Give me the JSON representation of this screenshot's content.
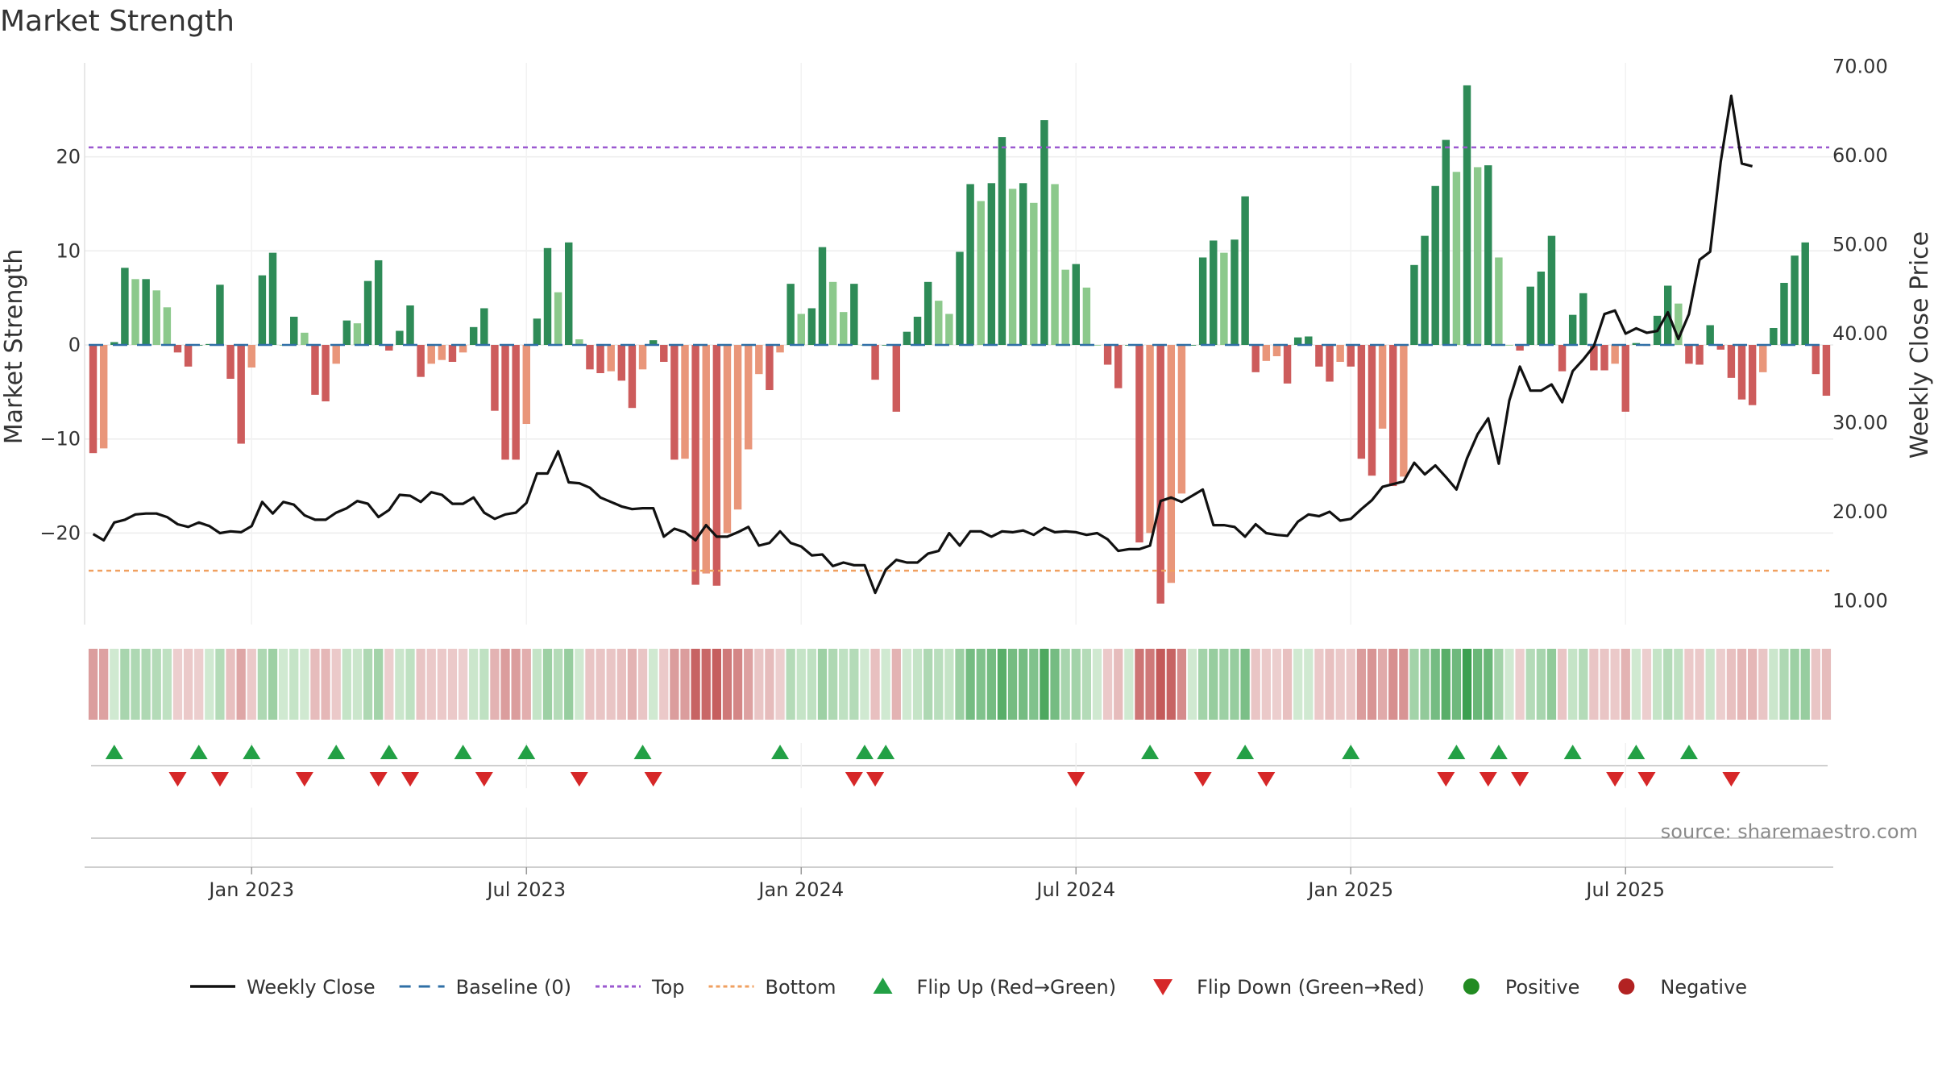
{
  "chart_data": {
    "type": "bar",
    "title": "Market Strength",
    "ylabel_left": "Market Strength",
    "ylabel_right": "Weekly Close Price",
    "source": "source: sharemaestro.com",
    "ylim_left": [
      -30,
      30
    ],
    "left_ticks": [
      {
        "v": 20,
        "label": "20"
      },
      {
        "v": 10,
        "label": "10"
      },
      {
        "v": 0,
        "label": "0"
      },
      {
        "v": -10,
        "label": "−10"
      },
      {
        "v": -20,
        "label": "−20"
      }
    ],
    "ylim_right": [
      5,
      72
    ],
    "right_ticks": [
      {
        "v": 70,
        "label": "70.00"
      },
      {
        "v": 60,
        "label": "60.00"
      },
      {
        "v": 50,
        "label": "50.00"
      },
      {
        "v": 40,
        "label": "40.00"
      },
      {
        "v": 30,
        "label": "30.00"
      },
      {
        "v": 20,
        "label": "20.00"
      },
      {
        "v": 10,
        "label": "10.00"
      }
    ],
    "x_ticks": [
      {
        "label": "Jan 2023",
        "week": 15
      },
      {
        "label": "Jul 2023",
        "week": 41
      },
      {
        "label": "Jan 2024",
        "week": 67
      },
      {
        "label": "Jul 2024",
        "week": 93
      },
      {
        "label": "Jan 2025",
        "week": 119
      },
      {
        "label": "Jul 2025",
        "week": 145
      }
    ],
    "top_line": 21,
    "bottom_line": -24,
    "strength": [
      -11.5,
      -11,
      0.3,
      8.2,
      7,
      7,
      5.8,
      4,
      -0.8,
      -2.3,
      0,
      0.1,
      6.4,
      -3.6,
      -10.5,
      -2.4,
      7.4,
      9.8,
      0,
      3,
      1.3,
      -5.3,
      -6,
      -2,
      2.6,
      2.3,
      6.8,
      9,
      -0.6,
      1.5,
      4.2,
      -3.4,
      -2,
      -1.6,
      -1.8,
      -0.8,
      1.9,
      3.9,
      -7,
      -12.2,
      -12.2,
      -8.4,
      2.8,
      10.3,
      5.6,
      10.9,
      0.6,
      -2.6,
      -3,
      -2.8,
      -3.8,
      -6.7,
      -2.6,
      0.5,
      -1.8,
      -12.2,
      -12.1,
      -25.5,
      -24.3,
      -25.6,
      -20,
      -17.5,
      -11.1,
      -3.1,
      -4.8,
      -0.8,
      6.5,
      3.3,
      3.9,
      10.4,
      6.7,
      3.5,
      6.5,
      0,
      -3.7,
      0,
      -7.1,
      1.4,
      3,
      6.7,
      4.7,
      3.3,
      9.9,
      17.1,
      15.3,
      17.2,
      22.1,
      16.6,
      17.2,
      15.1,
      23.9,
      17.1,
      8,
      8.6,
      6.1,
      0,
      -2.1,
      -4.6,
      0,
      -21,
      -20,
      -27.5,
      -25.3,
      -15.8,
      0,
      9.3,
      11.1,
      9.8,
      11.2,
      15.8,
      -2.9,
      -1.7,
      -1.2,
      -4.1,
      0.8,
      0.9,
      -2.3,
      -3.9,
      -1.8,
      -2.3,
      -12.1,
      -13.9,
      -8.9,
      -15,
      -14,
      8.5,
      11.6,
      16.9,
      21.8,
      18.4,
      27.6,
      18.9,
      19.1,
      9.3,
      0,
      -0.6,
      6.2,
      7.8,
      11.6,
      -2.8,
      3.2,
      5.5,
      -2.7,
      -2.7,
      -2,
      -7.1,
      0.2,
      -0.1,
      3.1,
      6.3,
      4.4,
      -2,
      -2.1,
      2.1,
      -0.5,
      -3.5,
      -5.8,
      -6.4,
      -2.9,
      1.8,
      6.6,
      9.5,
      10.9,
      -3.1,
      -5.4
    ],
    "weekly_close": [
      17.5,
      16.8,
      18.8,
      19.1,
      19.7,
      19.8,
      19.8,
      19.4,
      18.6,
      18.3,
      18.8,
      18.4,
      17.6,
      17.8,
      17.7,
      18.4,
      21.1,
      19.8,
      21.1,
      20.8,
      19.6,
      19.1,
      19.1,
      19.9,
      20.4,
      21.2,
      20.9,
      19.4,
      20.2,
      21.9,
      21.8,
      21.1,
      22.2,
      21.9,
      20.9,
      20.9,
      21.6,
      19.9,
      19.2,
      19.7,
      19.9,
      21,
      24.3,
      24.3,
      26.8,
      23.3,
      23.2,
      22.7,
      21.6,
      21.1,
      20.6,
      20.3,
      20.4,
      20.4,
      17.2,
      18.1,
      17.7,
      16.8,
      18.5,
      17.2,
      17.2,
      17.7,
      18.3,
      16.2,
      16.5,
      17.8,
      16.5,
      16.1,
      15.1,
      15.2,
      13.9,
      14.3,
      14,
      14,
      10.9,
      13.5,
      14.6,
      14.3,
      14.3,
      15.3,
      15.6,
      17.6,
      16.2,
      17.8,
      17.8,
      17.2,
      17.8,
      17.7,
      17.9,
      17.4,
      18.2,
      17.7,
      17.8,
      17.7,
      17.4,
      17.6,
      16.9,
      15.6,
      15.8,
      15.8,
      16.2,
      21.2,
      21.6,
      21.1,
      21.8,
      22.5,
      18.5,
      18.5,
      18.3,
      17.2,
      18.6,
      17.6,
      17.4,
      17.3,
      18.9,
      19.7,
      19.5,
      20,
      19,
      19.2,
      20.3,
      21.3,
      22.8,
      23.1,
      23.4,
      25.5,
      24.2,
      25.2,
      23.9,
      22.5,
      26,
      28.7,
      30.5,
      25.4,
      32.5,
      36.3,
      33.6,
      33.6,
      34.3,
      32.3,
      35.8,
      37.1,
      38.6,
      42.2,
      42.6,
      40,
      40.6,
      40.1,
      40.3,
      42.4,
      39.4,
      42.2,
      48.3,
      49.2,
      59.3,
      66.7,
      59.1,
      58.8
    ],
    "heat_strip": [
      -12,
      -11,
      1,
      8,
      7,
      7,
      6,
      4,
      -1,
      -2,
      -1,
      1,
      6,
      -4,
      -10,
      -2,
      7,
      10,
      1,
      3,
      1,
      -5,
      -6,
      -2,
      3,
      2,
      7,
      9,
      -1,
      2,
      4,
      -3,
      -2,
      -2,
      -2,
      -1,
      2,
      4,
      -7,
      -12,
      -12,
      -8,
      3,
      10,
      6,
      11,
      1,
      -3,
      -3,
      -3,
      -4,
      -7,
      -3,
      1,
      -2,
      -12,
      -12,
      -25,
      -24,
      -26,
      -20,
      -17,
      -11,
      -3,
      -5,
      -1,
      6,
      3,
      4,
      10,
      7,
      4,
      6,
      1,
      -4,
      1,
      -7,
      1,
      3,
      7,
      5,
      3,
      10,
      17,
      15,
      17,
      22,
      17,
      17,
      15,
      24,
      17,
      8,
      9,
      6,
      1,
      -2,
      -5,
      1,
      -21,
      -20,
      -27,
      -25,
      -16,
      1,
      9,
      11,
      10,
      11,
      16,
      -3,
      -2,
      -1,
      -4,
      1,
      1,
      -2,
      -4,
      -2,
      -2,
      -12,
      -14,
      -9,
      -15,
      -14,
      9,
      12,
      17,
      22,
      18,
      27,
      19,
      19,
      9,
      1,
      -1,
      6,
      8,
      12,
      -3,
      3,
      6,
      -3,
      -3,
      -2,
      -7,
      1,
      -1,
      3,
      6,
      4,
      -2,
      -2,
      2,
      -1,
      -4,
      -6,
      -6,
      -3,
      2,
      7,
      10,
      11,
      -3,
      -5
    ],
    "flip_up_weeks": [
      2,
      10,
      15,
      23,
      28,
      35,
      41,
      52,
      65,
      73,
      75,
      100,
      109,
      119,
      129,
      133,
      140,
      146,
      151
    ],
    "flip_down_weeks": [
      8,
      12,
      20,
      27,
      30,
      37,
      46,
      53,
      72,
      74,
      93,
      105,
      111,
      128,
      132,
      135,
      144,
      147,
      155
    ],
    "legend": [
      {
        "label": "Weekly Close",
        "kind": "line",
        "color": "#111111"
      },
      {
        "label": "Baseline (0)",
        "kind": "dash",
        "color": "#2f6fa6"
      },
      {
        "label": "Top",
        "kind": "dot",
        "color": "#9b59d0"
      },
      {
        "label": "Bottom",
        "kind": "dot",
        "color": "#f0a060"
      },
      {
        "label": "Flip Up (Red→Green)",
        "kind": "tri-up",
        "color": "#22a045"
      },
      {
        "label": "Flip Down (Green→Red)",
        "kind": "tri-down",
        "color": "#d62728"
      },
      {
        "label": "Positive",
        "kind": "circle",
        "color": "#228b22"
      },
      {
        "label": "Negative",
        "kind": "circle",
        "color": "#b22222"
      }
    ],
    "colors": {
      "pos_strong": "#2e8b57",
      "pos_weak": "#8cc98c",
      "neg_strong": "#cd5c5c",
      "neg_weak": "#e9967a",
      "baseline": "#2f6fa6",
      "top": "#9b59d0",
      "bottom": "#f0a060",
      "price": "#111111"
    }
  }
}
